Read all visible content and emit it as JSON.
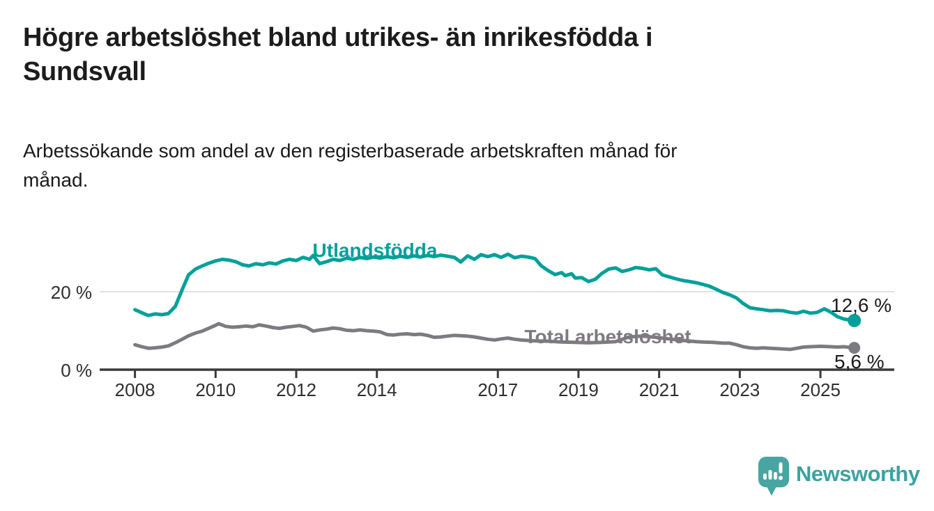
{
  "header": {
    "title": "Högre arbetslöshet bland utrikes- än inrikesfödda i\nSundsvall",
    "subtitle": "Arbetssökande som andel av den registerbaserade arbetskraften månad för\nmånad."
  },
  "chart_data": {
    "type": "line",
    "unit": "%",
    "grid": "single horizontal gridline at 20 %",
    "x_axis": {
      "tick_labels": [
        "2008",
        "2010",
        "2012",
        "2014",
        "2017",
        "2019",
        "2021",
        "2023",
        "2025"
      ],
      "range": [
        2007.2,
        2026.3
      ]
    },
    "y_axis": {
      "tick_labels": [
        "20 %",
        "0 %"
      ],
      "tick_values": [
        20,
        0
      ],
      "range": [
        0,
        32
      ]
    },
    "series": [
      {
        "name": "Utlandsfödda",
        "color": "#00a09a",
        "end_label": "12,6 %",
        "end_value": 12.6,
        "points": [
          [
            2008.0,
            15.4
          ],
          [
            2008.17,
            14.6
          ],
          [
            2008.33,
            13.9
          ],
          [
            2008.5,
            14.3
          ],
          [
            2008.67,
            14.1
          ],
          [
            2008.83,
            14.4
          ],
          [
            2009.0,
            16.2
          ],
          [
            2009.17,
            20.5
          ],
          [
            2009.33,
            24.3
          ],
          [
            2009.5,
            25.8
          ],
          [
            2009.67,
            26.6
          ],
          [
            2009.83,
            27.3
          ],
          [
            2010.0,
            27.9
          ],
          [
            2010.17,
            28.3
          ],
          [
            2010.33,
            28.1
          ],
          [
            2010.5,
            27.7
          ],
          [
            2010.67,
            26.9
          ],
          [
            2010.83,
            26.6
          ],
          [
            2011.0,
            27.2
          ],
          [
            2011.17,
            26.9
          ],
          [
            2011.33,
            27.4
          ],
          [
            2011.5,
            27.1
          ],
          [
            2011.67,
            27.9
          ],
          [
            2011.83,
            28.3
          ],
          [
            2012.0,
            28.0
          ],
          [
            2012.17,
            28.8
          ],
          [
            2012.33,
            28.3
          ],
          [
            2012.42,
            29.3
          ],
          [
            2012.58,
            27.2
          ],
          [
            2012.75,
            27.7
          ],
          [
            2012.92,
            28.3
          ],
          [
            2013.08,
            28.0
          ],
          [
            2013.25,
            28.6
          ],
          [
            2013.42,
            28.3
          ],
          [
            2013.58,
            28.8
          ],
          [
            2013.75,
            28.5
          ],
          [
            2013.92,
            28.9
          ],
          [
            2014.08,
            28.6
          ],
          [
            2014.25,
            29.0
          ],
          [
            2014.42,
            28.7
          ],
          [
            2014.58,
            29.1
          ],
          [
            2014.75,
            28.8
          ],
          [
            2014.92,
            29.2
          ],
          [
            2015.08,
            28.9
          ],
          [
            2015.25,
            29.3
          ],
          [
            2015.42,
            29.0
          ],
          [
            2015.58,
            29.4
          ],
          [
            2015.75,
            29.1
          ],
          [
            2015.92,
            28.8
          ],
          [
            2016.08,
            27.6
          ],
          [
            2016.25,
            29.2
          ],
          [
            2016.42,
            28.3
          ],
          [
            2016.58,
            29.5
          ],
          [
            2016.75,
            29.0
          ],
          [
            2016.92,
            29.5
          ],
          [
            2017.08,
            28.8
          ],
          [
            2017.25,
            29.6
          ],
          [
            2017.42,
            28.7
          ],
          [
            2017.58,
            29.1
          ],
          [
            2017.75,
            28.9
          ],
          [
            2017.92,
            28.5
          ],
          [
            2018.08,
            26.6
          ],
          [
            2018.25,
            25.4
          ],
          [
            2018.42,
            24.4
          ],
          [
            2018.58,
            24.9
          ],
          [
            2018.67,
            24.1
          ],
          [
            2018.83,
            24.6
          ],
          [
            2018.92,
            23.5
          ],
          [
            2019.08,
            23.6
          ],
          [
            2019.25,
            22.6
          ],
          [
            2019.42,
            23.2
          ],
          [
            2019.58,
            24.7
          ],
          [
            2019.75,
            25.8
          ],
          [
            2019.92,
            26.1
          ],
          [
            2020.08,
            25.2
          ],
          [
            2020.25,
            25.6
          ],
          [
            2020.42,
            26.2
          ],
          [
            2020.58,
            26.0
          ],
          [
            2020.75,
            25.6
          ],
          [
            2020.92,
            25.9
          ],
          [
            2021.08,
            24.3
          ],
          [
            2021.25,
            23.8
          ],
          [
            2021.42,
            23.3
          ],
          [
            2021.58,
            22.9
          ],
          [
            2021.75,
            22.6
          ],
          [
            2021.92,
            22.3
          ],
          [
            2022.08,
            21.9
          ],
          [
            2022.25,
            21.4
          ],
          [
            2022.42,
            20.6
          ],
          [
            2022.58,
            19.8
          ],
          [
            2022.75,
            19.2
          ],
          [
            2022.92,
            18.4
          ],
          [
            2023.08,
            17.0
          ],
          [
            2023.25,
            15.9
          ],
          [
            2023.42,
            15.6
          ],
          [
            2023.58,
            15.4
          ],
          [
            2023.75,
            15.1
          ],
          [
            2023.92,
            15.2
          ],
          [
            2024.08,
            15.1
          ],
          [
            2024.25,
            14.7
          ],
          [
            2024.42,
            14.5
          ],
          [
            2024.58,
            15.0
          ],
          [
            2024.75,
            14.5
          ],
          [
            2024.92,
            14.7
          ],
          [
            2025.0,
            15.1
          ],
          [
            2025.1,
            15.6
          ],
          [
            2025.25,
            14.8
          ],
          [
            2025.42,
            13.6
          ],
          [
            2025.58,
            13.0
          ],
          [
            2025.75,
            12.7
          ],
          [
            2025.84,
            12.6
          ]
        ]
      },
      {
        "name": "Total arbetslöshet",
        "color": "#7d7b81",
        "end_label": "5,6 %",
        "end_value": 5.6,
        "points": [
          [
            2008.0,
            6.4
          ],
          [
            2008.17,
            5.9
          ],
          [
            2008.33,
            5.5
          ],
          [
            2008.5,
            5.6
          ],
          [
            2008.67,
            5.8
          ],
          [
            2008.83,
            6.1
          ],
          [
            2009.0,
            6.9
          ],
          [
            2009.17,
            7.8
          ],
          [
            2009.33,
            8.7
          ],
          [
            2009.5,
            9.4
          ],
          [
            2009.67,
            9.9
          ],
          [
            2009.83,
            10.6
          ],
          [
            2010.0,
            11.4
          ],
          [
            2010.08,
            11.8
          ],
          [
            2010.25,
            11.1
          ],
          [
            2010.42,
            10.9
          ],
          [
            2010.58,
            11.0
          ],
          [
            2010.75,
            11.2
          ],
          [
            2010.92,
            11.0
          ],
          [
            2011.08,
            11.5
          ],
          [
            2011.25,
            11.2
          ],
          [
            2011.42,
            10.8
          ],
          [
            2011.58,
            10.6
          ],
          [
            2011.75,
            10.9
          ],
          [
            2011.92,
            11.1
          ],
          [
            2012.08,
            11.3
          ],
          [
            2012.25,
            10.9
          ],
          [
            2012.42,
            9.9
          ],
          [
            2012.58,
            10.2
          ],
          [
            2012.75,
            10.4
          ],
          [
            2012.92,
            10.7
          ],
          [
            2013.08,
            10.5
          ],
          [
            2013.25,
            10.1
          ],
          [
            2013.42,
            10.0
          ],
          [
            2013.58,
            10.2
          ],
          [
            2013.75,
            10.0
          ],
          [
            2013.92,
            9.9
          ],
          [
            2014.08,
            9.7
          ],
          [
            2014.25,
            9.0
          ],
          [
            2014.42,
            8.9
          ],
          [
            2014.58,
            9.1
          ],
          [
            2014.75,
            9.2
          ],
          [
            2014.92,
            9.0
          ],
          [
            2015.08,
            9.1
          ],
          [
            2015.25,
            8.8
          ],
          [
            2015.42,
            8.3
          ],
          [
            2015.58,
            8.4
          ],
          [
            2015.75,
            8.6
          ],
          [
            2015.92,
            8.8
          ],
          [
            2016.08,
            8.7
          ],
          [
            2016.25,
            8.6
          ],
          [
            2016.42,
            8.4
          ],
          [
            2016.58,
            8.1
          ],
          [
            2016.75,
            7.8
          ],
          [
            2016.92,
            7.6
          ],
          [
            2017.08,
            7.9
          ],
          [
            2017.25,
            8.1
          ],
          [
            2017.42,
            7.8
          ],
          [
            2017.58,
            7.6
          ],
          [
            2017.75,
            7.5
          ],
          [
            2017.92,
            7.4
          ],
          [
            2018.25,
            7.3
          ],
          [
            2018.58,
            7.1
          ],
          [
            2018.92,
            7.0
          ],
          [
            2019.25,
            6.9
          ],
          [
            2019.58,
            7.0
          ],
          [
            2019.92,
            7.2
          ],
          [
            2020.25,
            8.4
          ],
          [
            2020.58,
            8.6
          ],
          [
            2020.92,
            8.3
          ],
          [
            2021.25,
            7.9
          ],
          [
            2021.58,
            7.5
          ],
          [
            2021.92,
            7.2
          ],
          [
            2022.08,
            7.1
          ],
          [
            2022.33,
            7.0
          ],
          [
            2022.58,
            6.8
          ],
          [
            2022.75,
            6.8
          ],
          [
            2022.92,
            6.4
          ],
          [
            2023.08,
            5.9
          ],
          [
            2023.25,
            5.6
          ],
          [
            2023.42,
            5.5
          ],
          [
            2023.58,
            5.6
          ],
          [
            2023.75,
            5.5
          ],
          [
            2023.92,
            5.4
          ],
          [
            2024.08,
            5.3
          ],
          [
            2024.25,
            5.2
          ],
          [
            2024.42,
            5.5
          ],
          [
            2024.58,
            5.8
          ],
          [
            2024.75,
            5.9
          ],
          [
            2025.0,
            6.0
          ],
          [
            2025.25,
            5.9
          ],
          [
            2025.42,
            5.8
          ],
          [
            2025.58,
            5.9
          ],
          [
            2025.84,
            5.6
          ]
        ]
      }
    ]
  },
  "footer": {
    "brand": "Newsworthy",
    "logo_icon": "speech-bubble-bar-chart-icon",
    "brand_color": "#3ba3a0"
  }
}
